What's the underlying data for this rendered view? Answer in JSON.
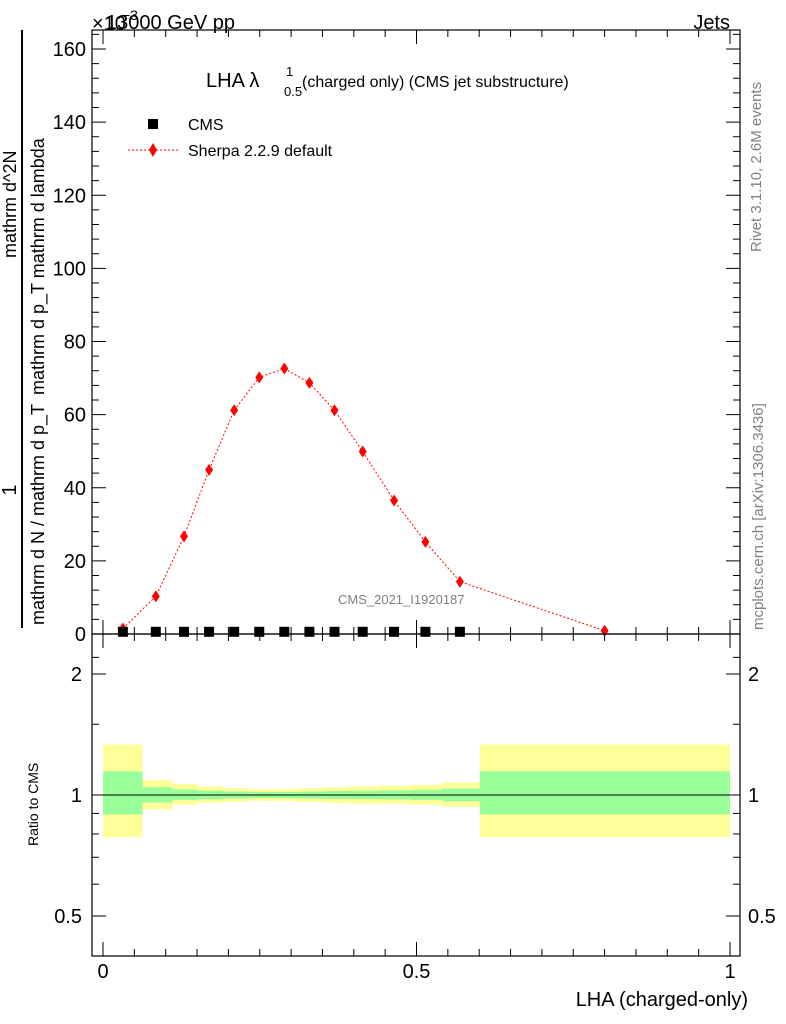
{
  "header": {
    "left": "13000 GeV pp",
    "right": "Jets",
    "exponent_prefix": "×10",
    "exponent": "−3"
  },
  "side_labels": {
    "rivet": "Rivet 3.1.10,  2.6M events",
    "mcplots": "mcplots.cern.ch [arXiv:1306.3436]"
  },
  "watermark": "CMS_2021_I1920187",
  "colors": {
    "sherpa": "#ff0000",
    "band_inner": "#99ff99",
    "band_outer": "#ffff99",
    "axes": "#000000"
  },
  "chart_data": [
    {
      "type": "line",
      "title_main": "LHA λ",
      "title_sup": "1",
      "title_sub": "0.5",
      "title_rest": "(charged only) (CMS jet substructure)",
      "ylabel_numerator": "1",
      "ylabel_denominator": "mathrm d N / mathrm d p_T mathrm d p_T mathrm d lambda",
      "ylabel_top": "mathrm d^2N",
      "ylabel_mid": "mathrm d p_T mathrm d lambda",
      "ylabel_prefix": "mathrm d N / mathrm d p_T",
      "xlim": [
        0,
        1
      ],
      "ylim": [
        0,
        0.165
      ],
      "yticks": [
        0,
        20,
        40,
        60,
        80,
        100,
        120,
        140,
        160
      ],
      "legend": [
        {
          "label": "CMS",
          "marker": "square"
        },
        {
          "label": "Sherpa 2.2.9 default",
          "marker": "diamond"
        }
      ],
      "series": [
        {
          "name": "CMS",
          "x": [
            0.0317,
            0.0842,
            0.1292,
            0.1692,
            0.2092,
            0.2492,
            0.2892,
            0.3292,
            0.3692,
            0.4142,
            0.4642,
            0.5142,
            0.5692
          ],
          "y": [
            0.0006,
            0.0006,
            0.0006,
            0.0006,
            0.0006,
            0.0006,
            0.0006,
            0.0006,
            0.0006,
            0.0006,
            0.0006,
            0.0006,
            0.0006
          ]
        },
        {
          "name": "Sherpa 2.2.9 default",
          "x": [
            0.0317,
            0.0842,
            0.1292,
            0.1692,
            0.2092,
            0.2492,
            0.2892,
            0.3292,
            0.3692,
            0.4142,
            0.4642,
            0.5142,
            0.5692,
            0.8
          ],
          "y": [
            0.0015,
            0.0103,
            0.0267,
            0.0449,
            0.0612,
            0.0702,
            0.0726,
            0.0687,
            0.0612,
            0.0499,
            0.0365,
            0.0252,
            0.0143,
            0.0009
          ]
        }
      ]
    },
    {
      "type": "area",
      "ylabel": "Ratio to CMS",
      "xlabel": "LHA (charged-only)",
      "xlim": [
        0,
        1
      ],
      "yscale": "log",
      "ylim": [
        0.4,
        2.4
      ],
      "yticks": [
        0.5,
        1,
        2
      ],
      "xticks": [
        0,
        0.5,
        1
      ],
      "xticklabels": [
        "0",
        "0.5",
        "1"
      ],
      "bins": [
        {
          "lo": 0.0,
          "hi": 0.063,
          "in_lo": 0.895,
          "in_hi": 1.145,
          "out_lo": 0.785,
          "out_hi": 1.335
        },
        {
          "lo": 0.063,
          "hi": 0.111,
          "in_lo": 0.958,
          "in_hi": 1.045,
          "out_lo": 0.92,
          "out_hi": 1.09
        },
        {
          "lo": 0.111,
          "hi": 0.151,
          "in_lo": 0.972,
          "in_hi": 1.032,
          "out_lo": 0.945,
          "out_hi": 1.065
        },
        {
          "lo": 0.151,
          "hi": 0.191,
          "in_lo": 0.976,
          "in_hi": 1.025,
          "out_lo": 0.955,
          "out_hi": 1.05
        },
        {
          "lo": 0.191,
          "hi": 0.231,
          "in_lo": 0.98,
          "in_hi": 1.02,
          "out_lo": 0.962,
          "out_hi": 1.04
        },
        {
          "lo": 0.231,
          "hi": 0.271,
          "in_lo": 0.983,
          "in_hi": 1.017,
          "out_lo": 0.968,
          "out_hi": 1.033
        },
        {
          "lo": 0.271,
          "hi": 0.311,
          "in_lo": 0.982,
          "in_hi": 1.018,
          "out_lo": 0.965,
          "out_hi": 1.035
        },
        {
          "lo": 0.311,
          "hi": 0.351,
          "in_lo": 0.98,
          "in_hi": 1.02,
          "out_lo": 0.96,
          "out_hi": 1.04
        },
        {
          "lo": 0.351,
          "hi": 0.391,
          "in_lo": 0.978,
          "in_hi": 1.023,
          "out_lo": 0.955,
          "out_hi": 1.045
        },
        {
          "lo": 0.391,
          "hi": 0.441,
          "in_lo": 0.977,
          "in_hi": 1.025,
          "out_lo": 0.952,
          "out_hi": 1.05
        },
        {
          "lo": 0.441,
          "hi": 0.491,
          "in_lo": 0.975,
          "in_hi": 1.027,
          "out_lo": 0.95,
          "out_hi": 1.055
        },
        {
          "lo": 0.491,
          "hi": 0.541,
          "in_lo": 0.972,
          "in_hi": 1.03,
          "out_lo": 0.945,
          "out_hi": 1.06
        },
        {
          "lo": 0.541,
          "hi": 0.601,
          "in_lo": 0.965,
          "in_hi": 1.038,
          "out_lo": 0.935,
          "out_hi": 1.075
        },
        {
          "lo": 0.601,
          "hi": 1.0,
          "in_lo": 0.895,
          "in_hi": 1.145,
          "out_lo": 0.785,
          "out_hi": 1.335
        }
      ]
    }
  ]
}
